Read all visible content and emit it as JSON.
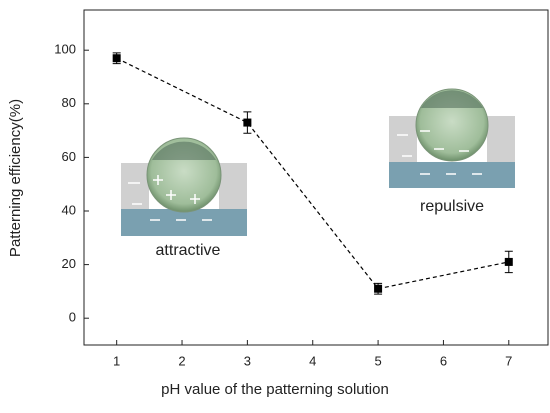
{
  "chart_data": {
    "type": "line",
    "xlabel": "pH value of the patterning solution",
    "ylabel": "Patterning efficiency(%)",
    "x": [
      1,
      3,
      5,
      7
    ],
    "series": [
      {
        "color": "#000000",
        "values": [
          97,
          73,
          11,
          21
        ],
        "errors": [
          2,
          4,
          2,
          4
        ]
      }
    ],
    "xlim": [
      0.5,
      7.6
    ],
    "xticks": [
      1,
      2,
      3,
      4,
      5,
      6,
      7
    ],
    "ylim": [
      -10,
      115
    ],
    "yticks": [
      0,
      20,
      40,
      60,
      80,
      100
    ],
    "annotations": [
      "attractive",
      "repulsive"
    ]
  }
}
